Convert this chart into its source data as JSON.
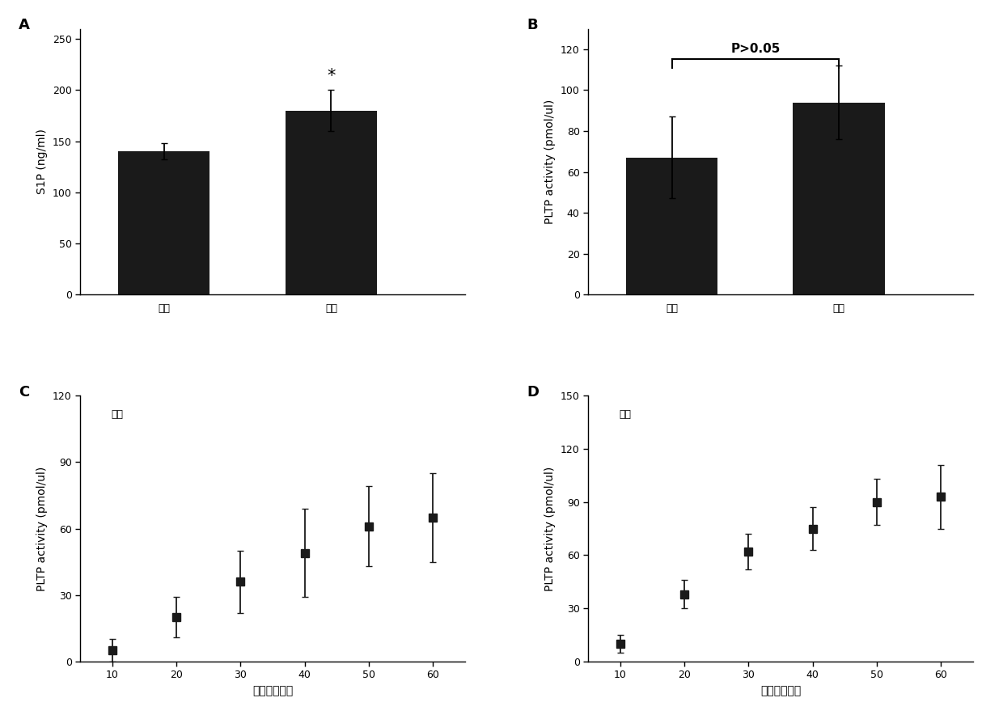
{
  "panel_A": {
    "label": "A",
    "categories": [
      "雄性",
      "雌性"
    ],
    "values": [
      140,
      180
    ],
    "errors": [
      8,
      20
    ],
    "ylabel": "S1P (ng/ml)",
    "ylim": [
      0,
      260
    ],
    "yticks": [
      0,
      50,
      100,
      150,
      200,
      250
    ],
    "bar_color": "#1a1a1a",
    "significance": "*",
    "sig_idx": 1
  },
  "panel_B": {
    "label": "B",
    "categories": [
      "雄性",
      "雌性"
    ],
    "values": [
      67,
      94
    ],
    "errors": [
      20,
      18
    ],
    "ylabel": "PLTP activity (pmol/ul)",
    "ylim": [
      0,
      130
    ],
    "yticks": [
      0,
      20,
      40,
      60,
      80,
      100,
      120
    ],
    "bar_color": "#1a1a1a",
    "pvalue_text": "P>0.05"
  },
  "panel_C": {
    "label": "C",
    "annotation": "雄性",
    "x": [
      10,
      20,
      30,
      40,
      50,
      60
    ],
    "y": [
      5,
      20,
      36,
      49,
      61,
      65
    ],
    "yerr": [
      5,
      9,
      14,
      20,
      18,
      20
    ],
    "xlabel": "时间（分钟）",
    "ylabel": "PLTP activity (pmol/ul)",
    "ylim": [
      0,
      120
    ],
    "yticks": [
      0,
      30,
      60,
      90,
      120
    ],
    "xlim": [
      5,
      65
    ],
    "xticks": [
      10,
      20,
      30,
      40,
      50,
      60
    ],
    "xticklabels": [
      "10",
      "20",
      "30",
      "40",
      "50",
      "60"
    ]
  },
  "panel_D": {
    "label": "D",
    "annotation": "雌性",
    "x": [
      10,
      20,
      30,
      40,
      50,
      60
    ],
    "y": [
      10,
      38,
      62,
      75,
      90,
      93
    ],
    "yerr": [
      5,
      8,
      10,
      12,
      13,
      18
    ],
    "xlabel": "时间（分钟）",
    "ylabel": "PLTP activity (pmol/ul)",
    "ylim": [
      0,
      150
    ],
    "yticks": [
      0,
      30,
      60,
      90,
      120,
      150
    ],
    "xlim": [
      5,
      65
    ],
    "xticks": [
      10,
      20,
      30,
      40,
      50,
      60
    ],
    "xticklabels": [
      "10",
      "20",
      "30",
      "40",
      "50",
      "60"
    ]
  },
  "background_color": "#ffffff",
  "bar_width": 0.55,
  "marker_color": "#1a1a1a",
  "marker_size": 7,
  "marker_style": "s",
  "capsize": 3,
  "elinewidth": 1.3,
  "ecolor": "#1a1a1a",
  "font_size_label": 10,
  "font_size_tick": 9,
  "font_size_panel": 13,
  "font_size_annot": 9
}
